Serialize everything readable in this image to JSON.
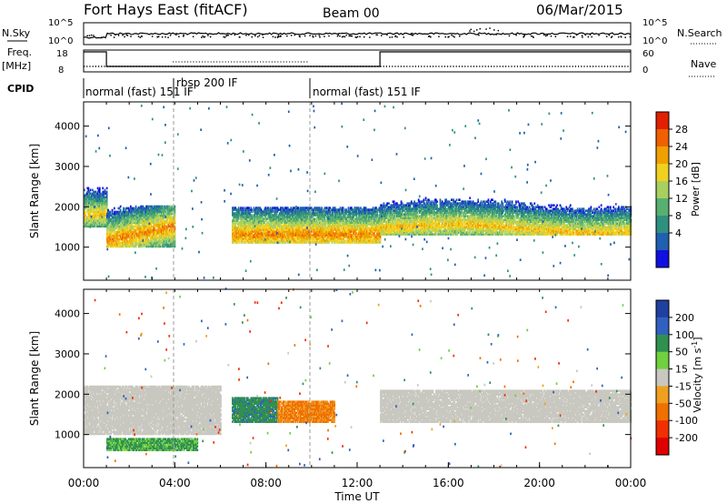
{
  "header": {
    "station": "Fort Hays East (fitACF)",
    "beam": "Beam 00",
    "date": "06/Mar/2015"
  },
  "status_panels": {
    "nsky_label": "N.Sky",
    "nsky_ticks": [
      "10^5",
      "10^0"
    ],
    "nsearch_label": "N.Search",
    "nsearch_ticks": [
      "10^5",
      "10^0"
    ],
    "freq_label": "Freq.",
    "freq_unit": "[MHz]",
    "freq_ticks": [
      18,
      8
    ],
    "nave_label": "Nave",
    "nave_ticks": [
      60,
      0
    ],
    "cpid_label": "CPID",
    "cpid_segments": [
      {
        "label": "normal (fast) 151 IF",
        "start": 0.0
      },
      {
        "label": "rbsp 200 IF",
        "start": 4.0
      },
      {
        "label": "normal (fast) 151 IF",
        "start": 10.0
      }
    ],
    "freq_trace": [
      {
        "from": 0.0,
        "to": 1.0,
        "level": "high"
      },
      {
        "from": 1.0,
        "to": 13.0,
        "level": "low"
      },
      {
        "from": 13.0,
        "to": 24.0,
        "level": "high"
      }
    ]
  },
  "chart_data": [
    {
      "type": "heatmap",
      "name": "power",
      "ylabel": "Slant Range [km]",
      "xlim": [
        0,
        24
      ],
      "ylim": [
        180,
        4600
      ],
      "yticks": [
        1000,
        2000,
        3000,
        4000
      ],
      "colorbar": {
        "title": "Power [dB]",
        "ticks": [
          4,
          8,
          12,
          16,
          20,
          24,
          28
        ],
        "colors": [
          "#1010e0",
          "#2060b0",
          "#309080",
          "#58b070",
          "#a8d060",
          "#f0d020",
          "#f0a000",
          "#f06000",
          "#e02000"
        ]
      },
      "features": [
        {
          "desc": "echo band",
          "t_start": 0.0,
          "t_end": 1.0,
          "range_km": [
            1500,
            2200
          ],
          "peak_db": 24
        },
        {
          "desc": "echo band",
          "t_start": 1.0,
          "t_end": 4.0,
          "range_km": [
            1000,
            1500
          ],
          "peak_db": 28
        },
        {
          "desc": "echo band",
          "t_start": 6.5,
          "t_end": 13.0,
          "range_km": [
            1100,
            1500
          ],
          "peak_db": 28
        },
        {
          "desc": "echo band",
          "t_start": 13.0,
          "t_end": 24.0,
          "range_km": [
            1300,
            2000
          ],
          "peak_db": 24
        }
      ]
    },
    {
      "type": "heatmap",
      "name": "velocity",
      "ylabel": "Slant Range [km]",
      "xlabel": "Time UT",
      "xlim": [
        0,
        24
      ],
      "ylim": [
        180,
        4600
      ],
      "xticks": [
        "00:00",
        "04:00",
        "08:00",
        "12:00",
        "16:00",
        "20:00",
        "00:00"
      ],
      "yticks": [
        1000,
        2000,
        3000,
        4000
      ],
      "colorbar": {
        "title": "Velocity [m s",
        "title_sup": "-1",
        "title_end": "]",
        "ticks": [
          200,
          100,
          50,
          15,
          -15,
          -50,
          -100,
          -200
        ],
        "colors": [
          "#2040a0",
          "#3060c0",
          "#309050",
          "#70d040",
          "#c8c8c0",
          "#f0a020",
          "#f07000",
          "#f03000",
          "#e00000"
        ]
      },
      "features": [
        {
          "desc": "ground scatter",
          "t_start": 0.0,
          "t_end": 6.0,
          "range_km": [
            1000,
            2200
          ],
          "velocity": 0
        },
        {
          "desc": "ionospheric scatter",
          "t_start": 6.5,
          "t_end": 8.5,
          "range_km": [
            1300,
            1900
          ],
          "velocity": 80
        },
        {
          "desc": "ionospheric scatter",
          "t_start": 8.5,
          "t_end": 11.0,
          "range_km": [
            1300,
            1800
          ],
          "velocity": -60
        },
        {
          "desc": "ground scatter",
          "t_start": 13.0,
          "t_end": 24.0,
          "range_km": [
            1300,
            2100
          ],
          "velocity": 0
        },
        {
          "desc": "near-range scatter",
          "t_start": 1.0,
          "t_end": 5.0,
          "range_km": [
            600,
            900
          ],
          "velocity": 60
        }
      ]
    }
  ]
}
